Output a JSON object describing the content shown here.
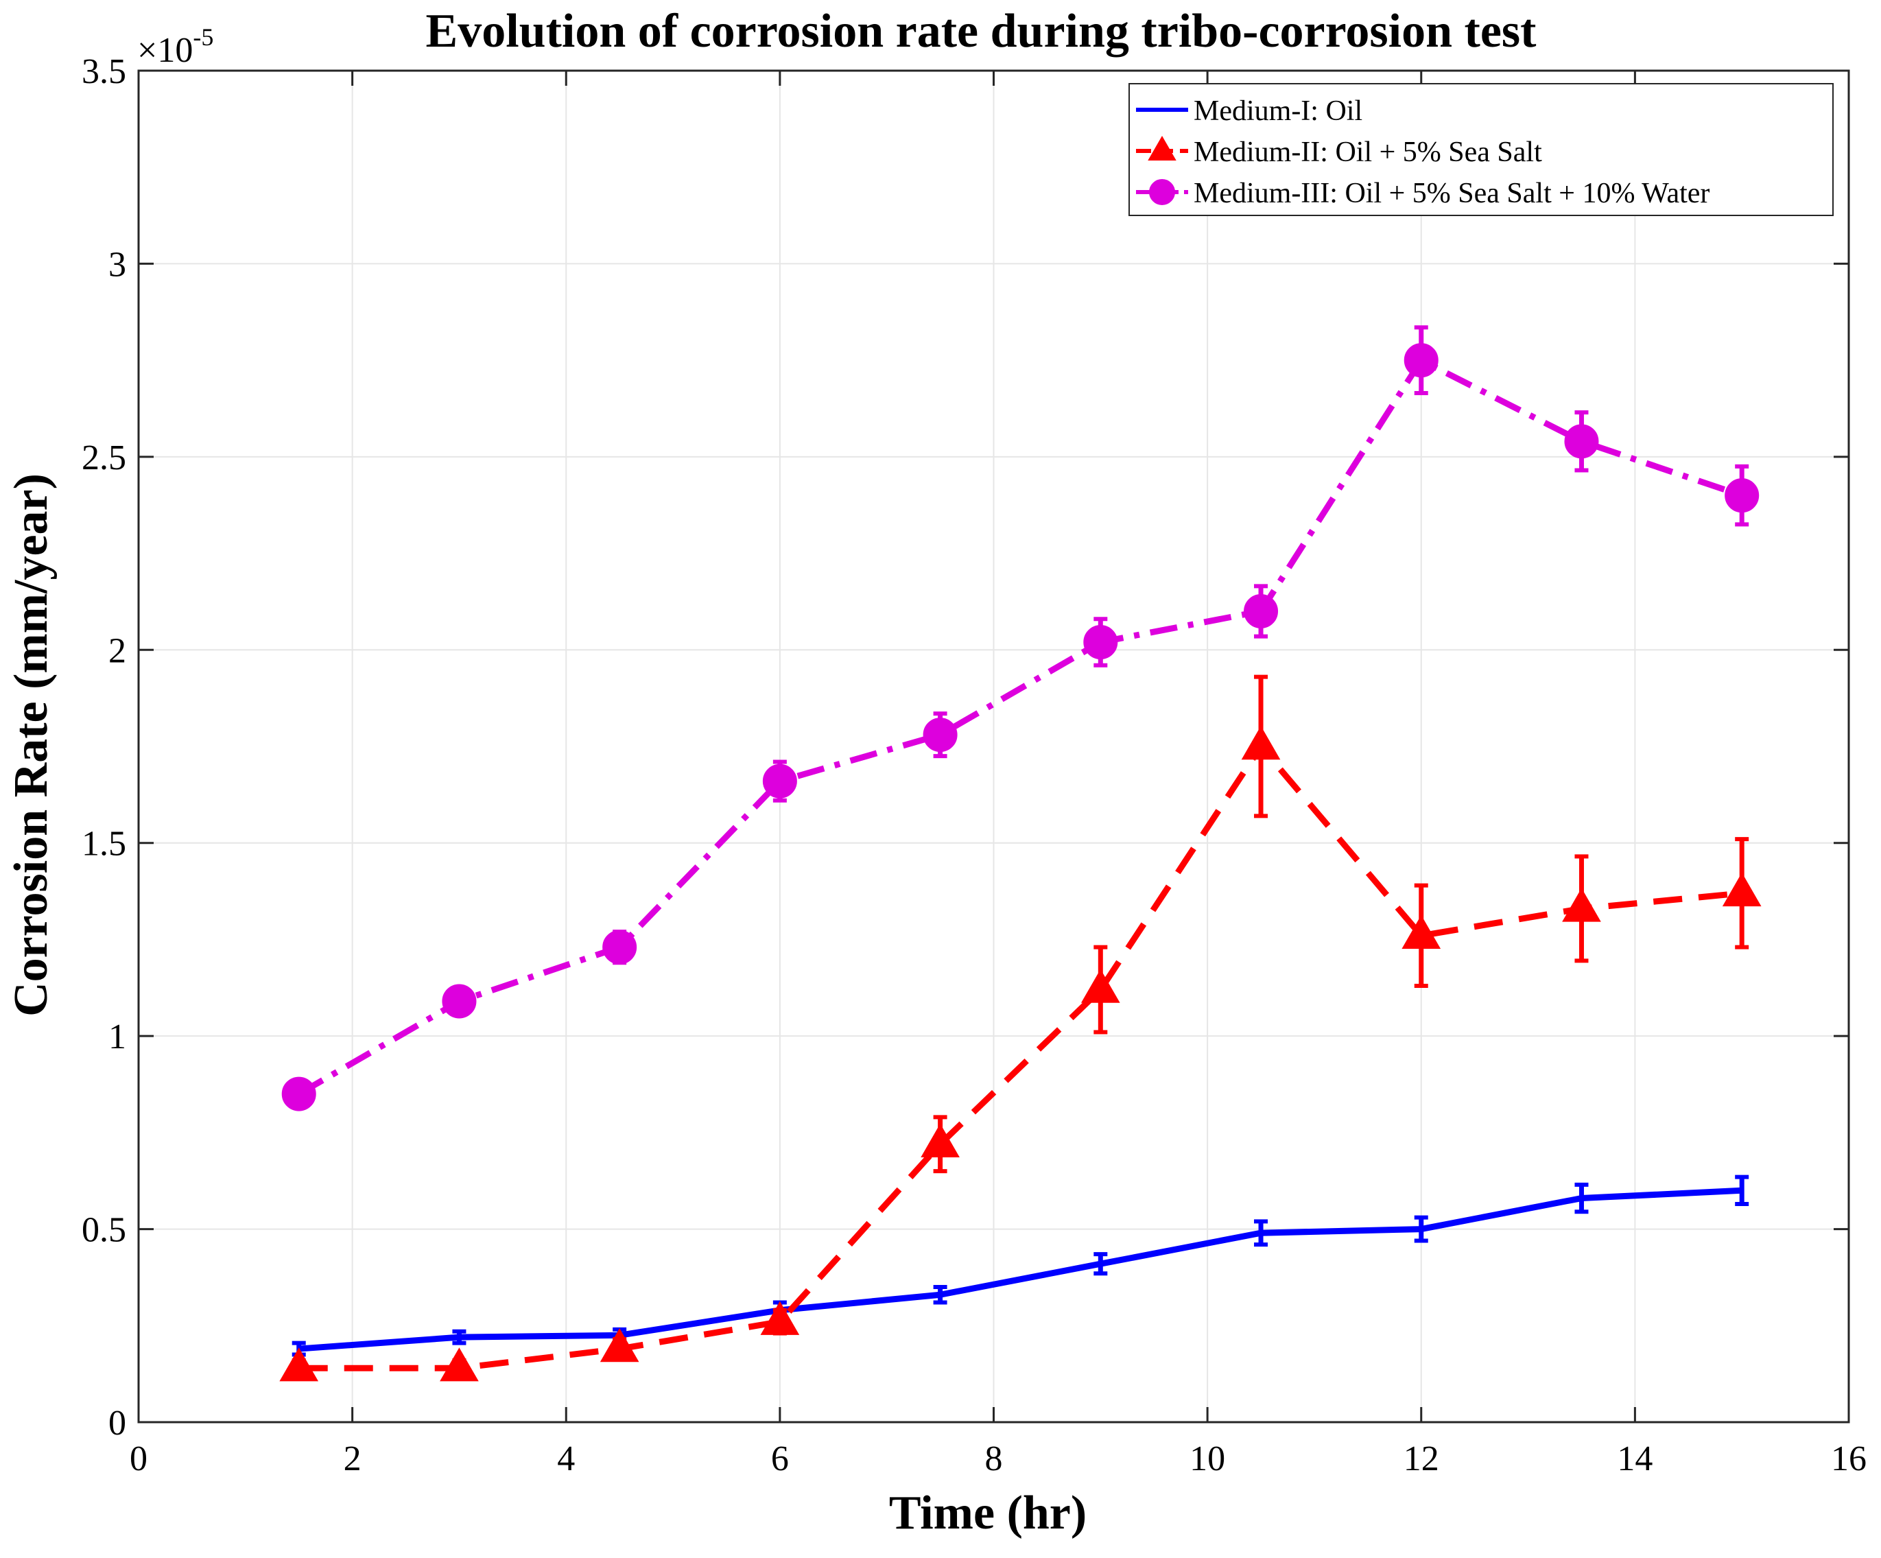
{
  "chart_data": {
    "type": "line",
    "title": "Evolution of corrosion rate during tribo-corrosion test",
    "xlabel": "Time (hr)",
    "ylabel": "Corrosion Rate (mm/year)",
    "xlim": [
      0,
      16
    ],
    "ylim": [
      0,
      3.5
    ],
    "y_scale_exponent_label": "×10",
    "y_scale_exponent_power": "-5",
    "xticks": [
      0,
      2,
      4,
      6,
      8,
      10,
      12,
      14,
      16
    ],
    "yticks": [
      0,
      0.5,
      1,
      1.5,
      2,
      2.5,
      3,
      3.5
    ],
    "grid": true,
    "legend_position": "top-right",
    "x": [
      1.5,
      3,
      4.5,
      6,
      7.5,
      9,
      10.5,
      12,
      13.5,
      15
    ],
    "series": [
      {
        "name": "Medium-I: Oil",
        "color": "#0000ff",
        "line_style": "solid",
        "marker": "none",
        "values": [
          0.19,
          0.22,
          0.225,
          0.29,
          0.33,
          0.41,
          0.49,
          0.5,
          0.58,
          0.6
        ],
        "errors": [
          0.015,
          0.015,
          0.015,
          0.02,
          0.02,
          0.025,
          0.03,
          0.03,
          0.035,
          0.035
        ]
      },
      {
        "name": "Medium-II: Oil + 5% Sea Salt",
        "color": "#ff0000",
        "line_style": "dashed",
        "marker": "triangle",
        "values": [
          0.14,
          0.14,
          0.19,
          0.26,
          0.72,
          1.12,
          1.75,
          1.26,
          1.33,
          1.37
        ],
        "errors": [
          0.02,
          0.02,
          0.025,
          0.03,
          0.07,
          0.11,
          0.18,
          0.13,
          0.135,
          0.14
        ]
      },
      {
        "name": "Medium-III: Oil + 5% Sea Salt + 10% Water",
        "color": "#dd00dd",
        "line_style": "dashdot",
        "marker": "circle",
        "values": [
          0.85,
          1.09,
          1.23,
          1.66,
          1.78,
          2.02,
          2.1,
          2.75,
          2.54,
          2.4
        ],
        "errors": [
          0.03,
          0.035,
          0.04,
          0.05,
          0.055,
          0.06,
          0.065,
          0.085,
          0.075,
          0.075
        ]
      }
    ]
  }
}
